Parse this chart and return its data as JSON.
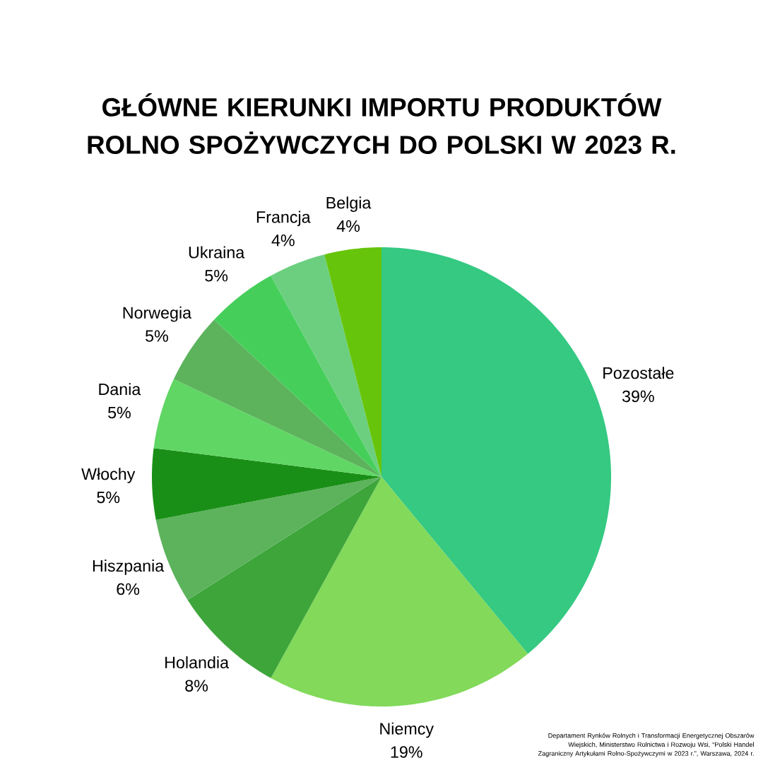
{
  "chart_data": {
    "type": "pie",
    "title": "GŁÓWNE KIERUNKI IMPORTU PRODUKTÓW ROLNO SPOŻYWCZYCH DO POLSKI W 2023 R.",
    "categories": [
      "Pozostałe",
      "Niemcy",
      "Holandia",
      "Hiszpania",
      "Włochy",
      "Dania",
      "Norwegia",
      "Ukraina",
      "Francja",
      "Belgia"
    ],
    "values": [
      39,
      19,
      8,
      6,
      5,
      5,
      5,
      5,
      4,
      4
    ],
    "value_labels": [
      "39%",
      "19%",
      "8%",
      "6%",
      "5%",
      "5%",
      "5%",
      "5%",
      "4%",
      "4%"
    ],
    "colors": [
      "#35c982",
      "#82d95a",
      "#3da53a",
      "#5cb35c",
      "#1a8f17",
      "#60d664",
      "#5cb35c",
      "#45cf5a",
      "#6bcf7f",
      "#66c40a"
    ],
    "annotations": [
      "Departament Rynków Rolnych i Transformacji Energetycznej Obszarów Wiejskich, Ministerstwo Rolnictwa i Rozwoju Wsi, “Polski Handel Zagraniczny Artykułami Rolno-Spożywczymi w 2023 r.”, Warszawa, 2024 r."
    ]
  }
}
